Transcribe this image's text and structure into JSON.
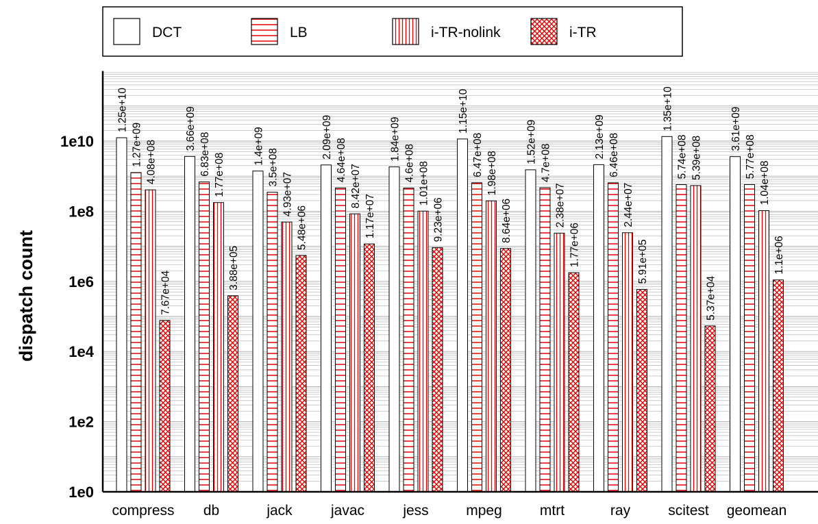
{
  "chart_data": {
    "type": "bar",
    "ylabel": "dispatch count",
    "scale": "log",
    "ylim": [
      1,
      1000000000000.0
    ],
    "yticks": [
      "1e0",
      "1e2",
      "1e4",
      "1e6",
      "1e8",
      "1e10"
    ],
    "grid": "horizontal minor gridlines",
    "legend_position": "top",
    "categories": [
      "compress",
      "db",
      "jack",
      "javac",
      "jess",
      "mpeg",
      "mtrt",
      "ray",
      "scitest",
      "geomean"
    ],
    "series": [
      {
        "name": "DCT",
        "pattern": "blank",
        "values": [
          12500000000.0,
          3660000000.0,
          1400000000.0,
          2090000000.0,
          1840000000.0,
          11500000000.0,
          1520000000.0,
          2130000000.0,
          13500000000.0,
          3610000000.0
        ],
        "labels": [
          "1.25e+10",
          "3.66e+09",
          "1.4e+09",
          "2.09e+09",
          "1.84e+09",
          "1.15e+10",
          "1.52e+09",
          "2.13e+09",
          "1.35e+10",
          "3.61e+09"
        ]
      },
      {
        "name": "LB",
        "pattern": "horizontal-stripes",
        "values": [
          1270000000.0,
          683000000.0,
          350000000.0,
          464000000.0,
          460000000.0,
          647000000.0,
          470000000.0,
          646000000.0,
          574000000.0,
          577000000.0
        ],
        "labels": [
          "1.27e+09",
          "6.83e+08",
          "3.5e+08",
          "4.64e+08",
          "4.6e+08",
          "6.47e+08",
          "4.7e+08",
          "6.46e+08",
          "5.74e+08",
          "5.77e+08"
        ]
      },
      {
        "name": "i-TR-nolink",
        "pattern": "vertical-stripes",
        "values": [
          408000000.0,
          177000000.0,
          49300000.0,
          84200000.0,
          101000000.0,
          198000000.0,
          23800000.0,
          24400000.0,
          539000000.0,
          104000000.0
        ],
        "labels": [
          "4.08e+08",
          "1.77e+08",
          "4.93e+07",
          "8.42e+07",
          "1.01e+08",
          "1.98e+08",
          "2.38e+07",
          "2.44e+07",
          "5.39e+08",
          "1.04e+08"
        ]
      },
      {
        "name": "i-TR",
        "pattern": "crosshatch",
        "values": [
          76700.0,
          388000.0,
          5480000.0,
          11700000.0,
          9230000.0,
          8640000.0,
          1770000.0,
          591000.0,
          53700.0,
          1100000.0
        ],
        "labels": [
          "7.67e+04",
          "3.88e+05",
          "5.48e+06",
          "1.17e+07",
          "9.23e+06",
          "8.64e+06",
          "1.77e+06",
          "5.91e+05",
          "5.37e+04",
          "1.1e+06"
        ]
      }
    ]
  },
  "colors": {
    "pattern": "#dd0000",
    "axis": "#000000",
    "grid": "#aaaaaa"
  }
}
